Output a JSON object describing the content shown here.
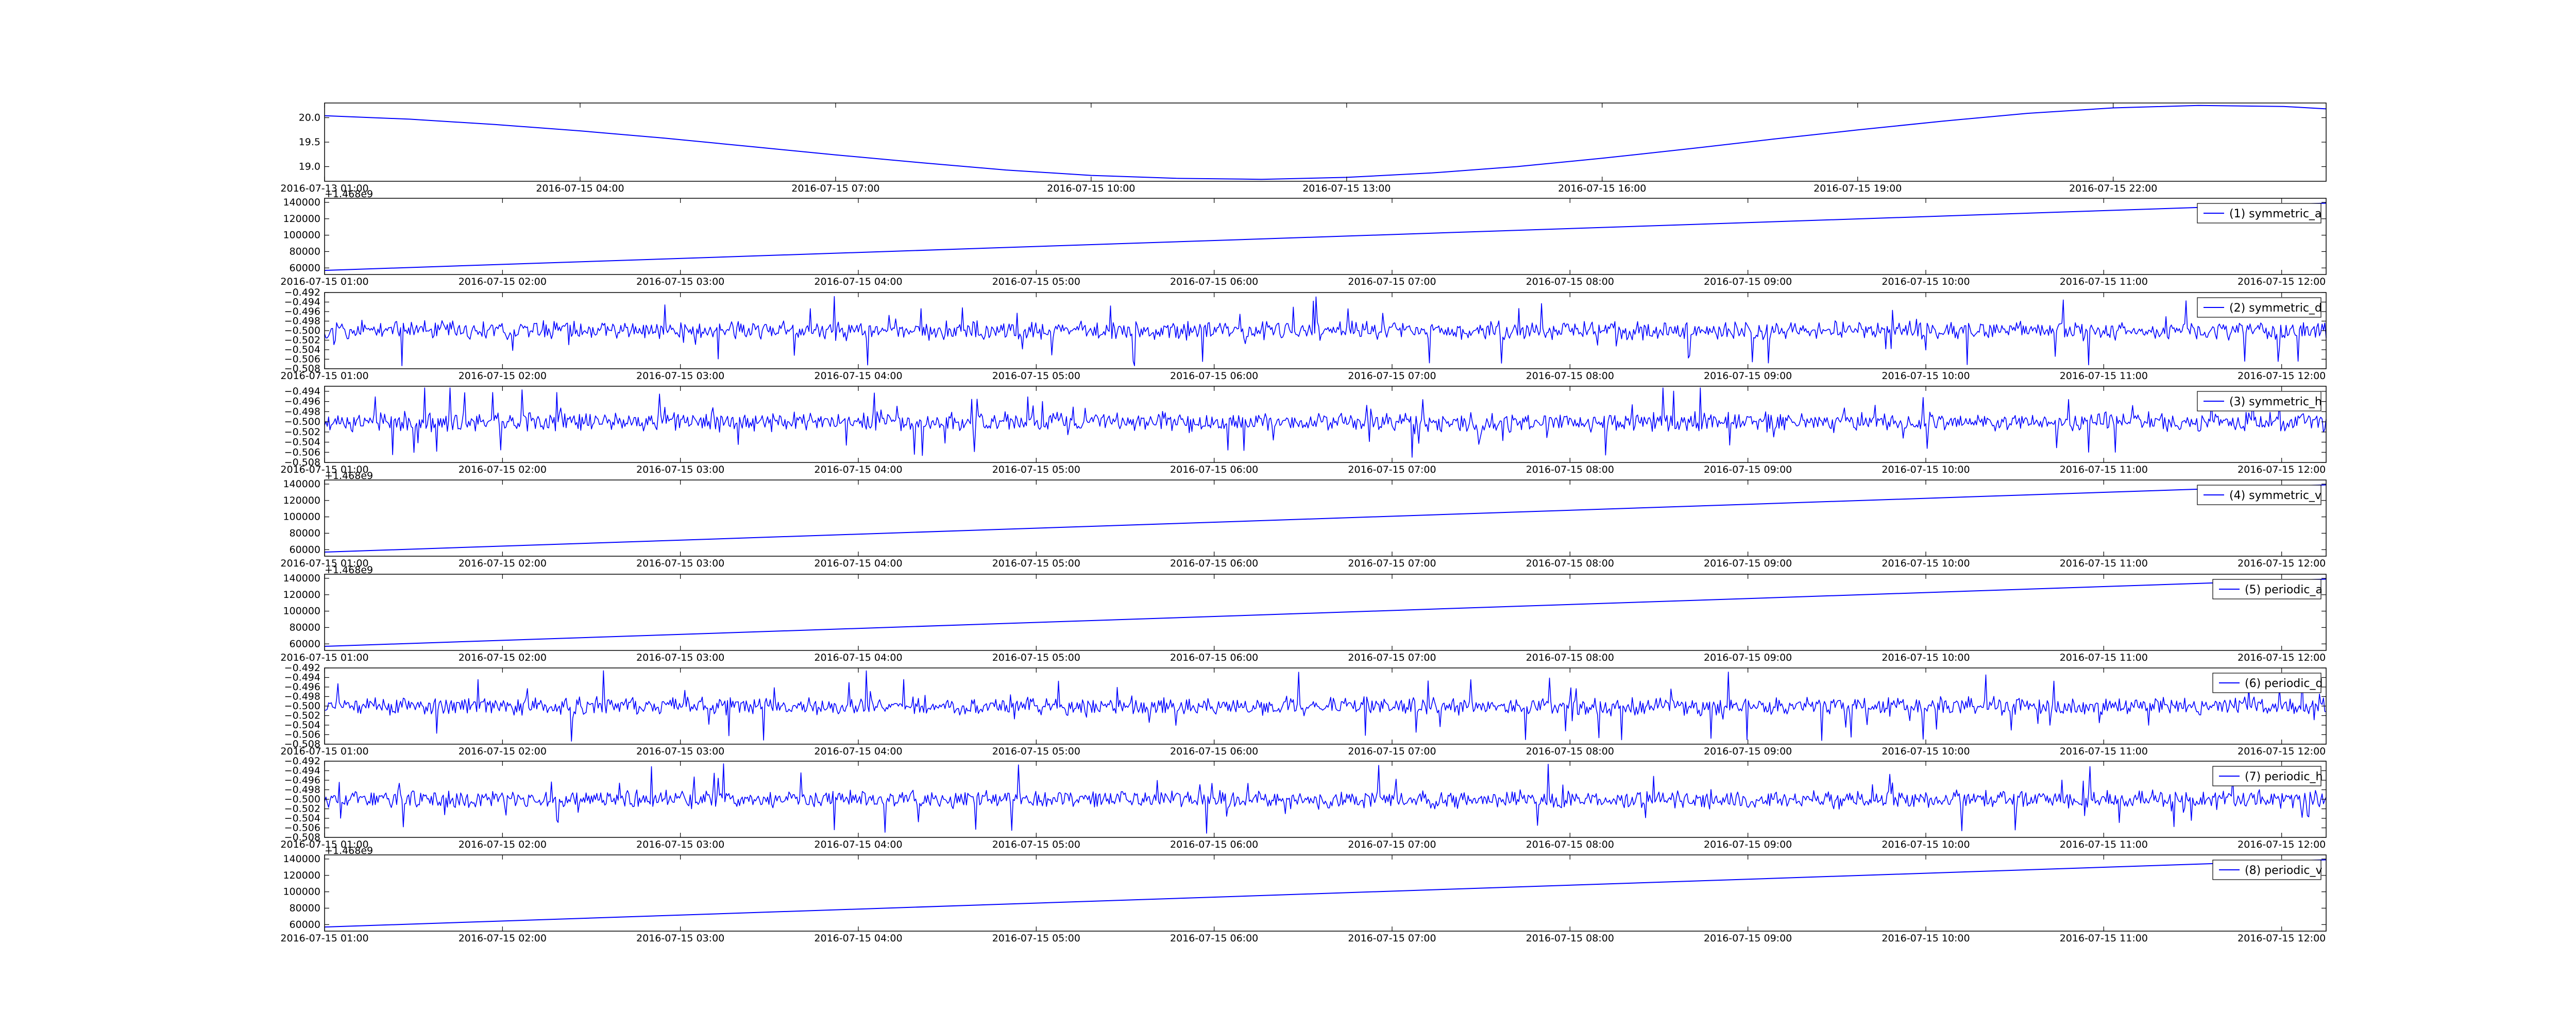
{
  "chart_data": [
    {
      "type": "line",
      "color": "#0000ff",
      "x_ticks": [
        "2016-07-13 01:00",
        "2016-07-15 04:00",
        "2016-07-15 07:00",
        "2016-07-15 10:00",
        "2016-07-15 13:00",
        "2016-07-15 16:00",
        "2016-07-15 19:00",
        "2016-07-15 22:00"
      ],
      "y_ticks": [
        "20.0",
        "19.5",
        "19.0"
      ],
      "ylim": [
        18.7,
        20.3
      ],
      "x_range_hours": [
        1,
        24.5
      ],
      "series": [
        {
          "x": [
            1,
            2,
            3,
            4,
            5,
            6,
            7,
            8,
            9,
            10,
            11,
            12,
            13,
            14,
            15,
            16,
            17,
            18,
            19,
            20,
            21,
            22,
            23,
            24,
            24.5
          ],
          "values": [
            20.04,
            19.97,
            19.86,
            19.73,
            19.58,
            19.41,
            19.24,
            19.08,
            18.93,
            18.82,
            18.76,
            18.74,
            18.78,
            18.87,
            19.0,
            19.17,
            19.36,
            19.56,
            19.75,
            19.93,
            20.09,
            20.2,
            20.25,
            20.23,
            20.18
          ]
        }
      ]
    },
    {
      "type": "line",
      "color": "#0000ff",
      "offset_text": "+1.468e9",
      "legend": "(1) symmetric_a",
      "legend_position": "top-right",
      "x_ticks": [
        "2016-07-15 01:00",
        "2016-07-15 02:00",
        "2016-07-15 03:00",
        "2016-07-15 04:00",
        "2016-07-15 05:00",
        "2016-07-15 06:00",
        "2016-07-15 07:00",
        "2016-07-15 08:00",
        "2016-07-15 09:00",
        "2016-07-15 10:00",
        "2016-07-15 11:00",
        "2016-07-15 12:00"
      ],
      "y_ticks": [
        "140000",
        "120000",
        "100000",
        "80000",
        "60000"
      ],
      "ylim": [
        52000,
        145000
      ],
      "x_range_hours": [
        1,
        12.25
      ],
      "series": [
        {
          "name": "(1) symmetric_a",
          "x": [
            1,
            12.25
          ],
          "values": [
            57000,
            139000
          ]
        }
      ]
    },
    {
      "type": "line",
      "color": "#0000ff",
      "legend": "(2) symmetric_d",
      "legend_position": "top-right",
      "x_ticks": [
        "2016-07-15 01:00",
        "2016-07-15 02:00",
        "2016-07-15 03:00",
        "2016-07-15 04:00",
        "2016-07-15 05:00",
        "2016-07-15 06:00",
        "2016-07-15 07:00",
        "2016-07-15 08:00",
        "2016-07-15 09:00",
        "2016-07-15 10:00",
        "2016-07-15 11:00",
        "2016-07-15 12:00"
      ],
      "y_ticks": [
        "−0.492",
        "−0.494",
        "−0.496",
        "−0.498",
        "−0.500",
        "−0.502",
        "−0.504",
        "−0.506",
        "−0.508"
      ],
      "ylim": [
        -0.508,
        -0.492
      ],
      "x_range_hours": [
        1,
        12.25
      ],
      "noise": {
        "center": -0.5,
        "amplitude": 0.0022,
        "spike": 0.0075,
        "seed": 11
      },
      "series": [
        {
          "name": "(2) symmetric_d"
        }
      ]
    },
    {
      "type": "line",
      "color": "#0000ff",
      "legend": "(3) symmetric_h",
      "legend_position": "top-right",
      "x_ticks": [
        "2016-07-15 01:00",
        "2016-07-15 02:00",
        "2016-07-15 03:00",
        "2016-07-15 04:00",
        "2016-07-15 05:00",
        "2016-07-15 06:00",
        "2016-07-15 07:00",
        "2016-07-15 08:00",
        "2016-07-15 09:00",
        "2016-07-15 10:00",
        "2016-07-15 11:00",
        "2016-07-15 12:00"
      ],
      "y_ticks": [
        "−0.494",
        "−0.496",
        "−0.498",
        "−0.500",
        "−0.502",
        "−0.504",
        "−0.506",
        "−0.508"
      ],
      "ylim": [
        -0.508,
        -0.493
      ],
      "x_range_hours": [
        1,
        12.25
      ],
      "noise": {
        "center": -0.5,
        "amplitude": 0.0022,
        "spike": 0.007,
        "seed": 23
      },
      "series": [
        {
          "name": "(3) symmetric_h"
        }
      ]
    },
    {
      "type": "line",
      "color": "#0000ff",
      "offset_text": "+1.468e9",
      "legend": "(4) symmetric_v",
      "legend_position": "top-right",
      "x_ticks": [
        "2016-07-15 01:00",
        "2016-07-15 02:00",
        "2016-07-15 03:00",
        "2016-07-15 04:00",
        "2016-07-15 05:00",
        "2016-07-15 06:00",
        "2016-07-15 07:00",
        "2016-07-15 08:00",
        "2016-07-15 09:00",
        "2016-07-15 10:00",
        "2016-07-15 11:00",
        "2016-07-15 12:00"
      ],
      "y_ticks": [
        "140000",
        "120000",
        "100000",
        "80000",
        "60000"
      ],
      "ylim": [
        52000,
        145000
      ],
      "x_range_hours": [
        1,
        12.25
      ],
      "series": [
        {
          "name": "(4) symmetric_v",
          "x": [
            1,
            12.25
          ],
          "values": [
            57000,
            139000
          ]
        }
      ]
    },
    {
      "type": "line",
      "color": "#0000ff",
      "offset_text": "+1.468e9",
      "legend": "(5) periodic_a",
      "legend_position": "top-right",
      "x_ticks": [
        "2016-07-15 01:00",
        "2016-07-15 02:00",
        "2016-07-15 03:00",
        "2016-07-15 04:00",
        "2016-07-15 05:00",
        "2016-07-15 06:00",
        "2016-07-15 07:00",
        "2016-07-15 08:00",
        "2016-07-15 09:00",
        "2016-07-15 10:00",
        "2016-07-15 11:00",
        "2016-07-15 12:00"
      ],
      "y_ticks": [
        "140000",
        "120000",
        "100000",
        "80000",
        "60000"
      ],
      "ylim": [
        52000,
        145000
      ],
      "x_range_hours": [
        1,
        12.25
      ],
      "series": [
        {
          "name": "(5) periodic_a",
          "x": [
            1,
            12.25
          ],
          "values": [
            57000,
            139000
          ]
        }
      ]
    },
    {
      "type": "line",
      "color": "#0000ff",
      "legend": "(6) periodic_d",
      "legend_position": "top-right",
      "x_ticks": [
        "2016-07-15 01:00",
        "2016-07-15 02:00",
        "2016-07-15 03:00",
        "2016-07-15 04:00",
        "2016-07-15 05:00",
        "2016-07-15 06:00",
        "2016-07-15 07:00",
        "2016-07-15 08:00",
        "2016-07-15 09:00",
        "2016-07-15 10:00",
        "2016-07-15 11:00",
        "2016-07-15 12:00"
      ],
      "y_ticks": [
        "−0.492",
        "−0.494",
        "−0.496",
        "−0.498",
        "−0.500",
        "−0.502",
        "−0.504",
        "−0.506",
        "−0.508"
      ],
      "ylim": [
        -0.508,
        -0.492
      ],
      "x_range_hours": [
        1,
        12.25
      ],
      "noise": {
        "center": -0.5,
        "amplitude": 0.0022,
        "spike": 0.0075,
        "seed": 37
      },
      "series": [
        {
          "name": "(6) periodic_d"
        }
      ]
    },
    {
      "type": "line",
      "color": "#0000ff",
      "legend": "(7) periodic_h",
      "legend_position": "top-right",
      "x_ticks": [
        "2016-07-15 01:00",
        "2016-07-15 02:00",
        "2016-07-15 03:00",
        "2016-07-15 04:00",
        "2016-07-15 05:00",
        "2016-07-15 06:00",
        "2016-07-15 07:00",
        "2016-07-15 08:00",
        "2016-07-15 09:00",
        "2016-07-15 10:00",
        "2016-07-15 11:00",
        "2016-07-15 12:00"
      ],
      "y_ticks": [
        "−0.492",
        "−0.494",
        "−0.496",
        "−0.498",
        "−0.500",
        "−0.502",
        "−0.504",
        "−0.506",
        "−0.508"
      ],
      "ylim": [
        -0.508,
        -0.492
      ],
      "x_range_hours": [
        1,
        12.25
      ],
      "noise": {
        "center": -0.5,
        "amplitude": 0.0022,
        "spike": 0.0075,
        "seed": 53
      },
      "series": [
        {
          "name": "(7) periodic_h"
        }
      ]
    },
    {
      "type": "line",
      "color": "#0000ff",
      "offset_text": "+1.468e9",
      "legend": "(8) periodic_v",
      "legend_position": "top-right",
      "x_ticks": [
        "2016-07-15 01:00",
        "2016-07-15 02:00",
        "2016-07-15 03:00",
        "2016-07-15 04:00",
        "2016-07-15 05:00",
        "2016-07-15 06:00",
        "2016-07-15 07:00",
        "2016-07-15 08:00",
        "2016-07-15 09:00",
        "2016-07-15 10:00",
        "2016-07-15 11:00",
        "2016-07-15 12:00"
      ],
      "y_ticks": [
        "140000",
        "120000",
        "100000",
        "80000",
        "60000"
      ],
      "ylim": [
        52000,
        145000
      ],
      "x_range_hours": [
        1,
        12.25
      ],
      "series": [
        {
          "name": "(8) periodic_v",
          "x": [
            1,
            12.25
          ],
          "values": [
            57000,
            139000
          ]
        }
      ]
    }
  ]
}
